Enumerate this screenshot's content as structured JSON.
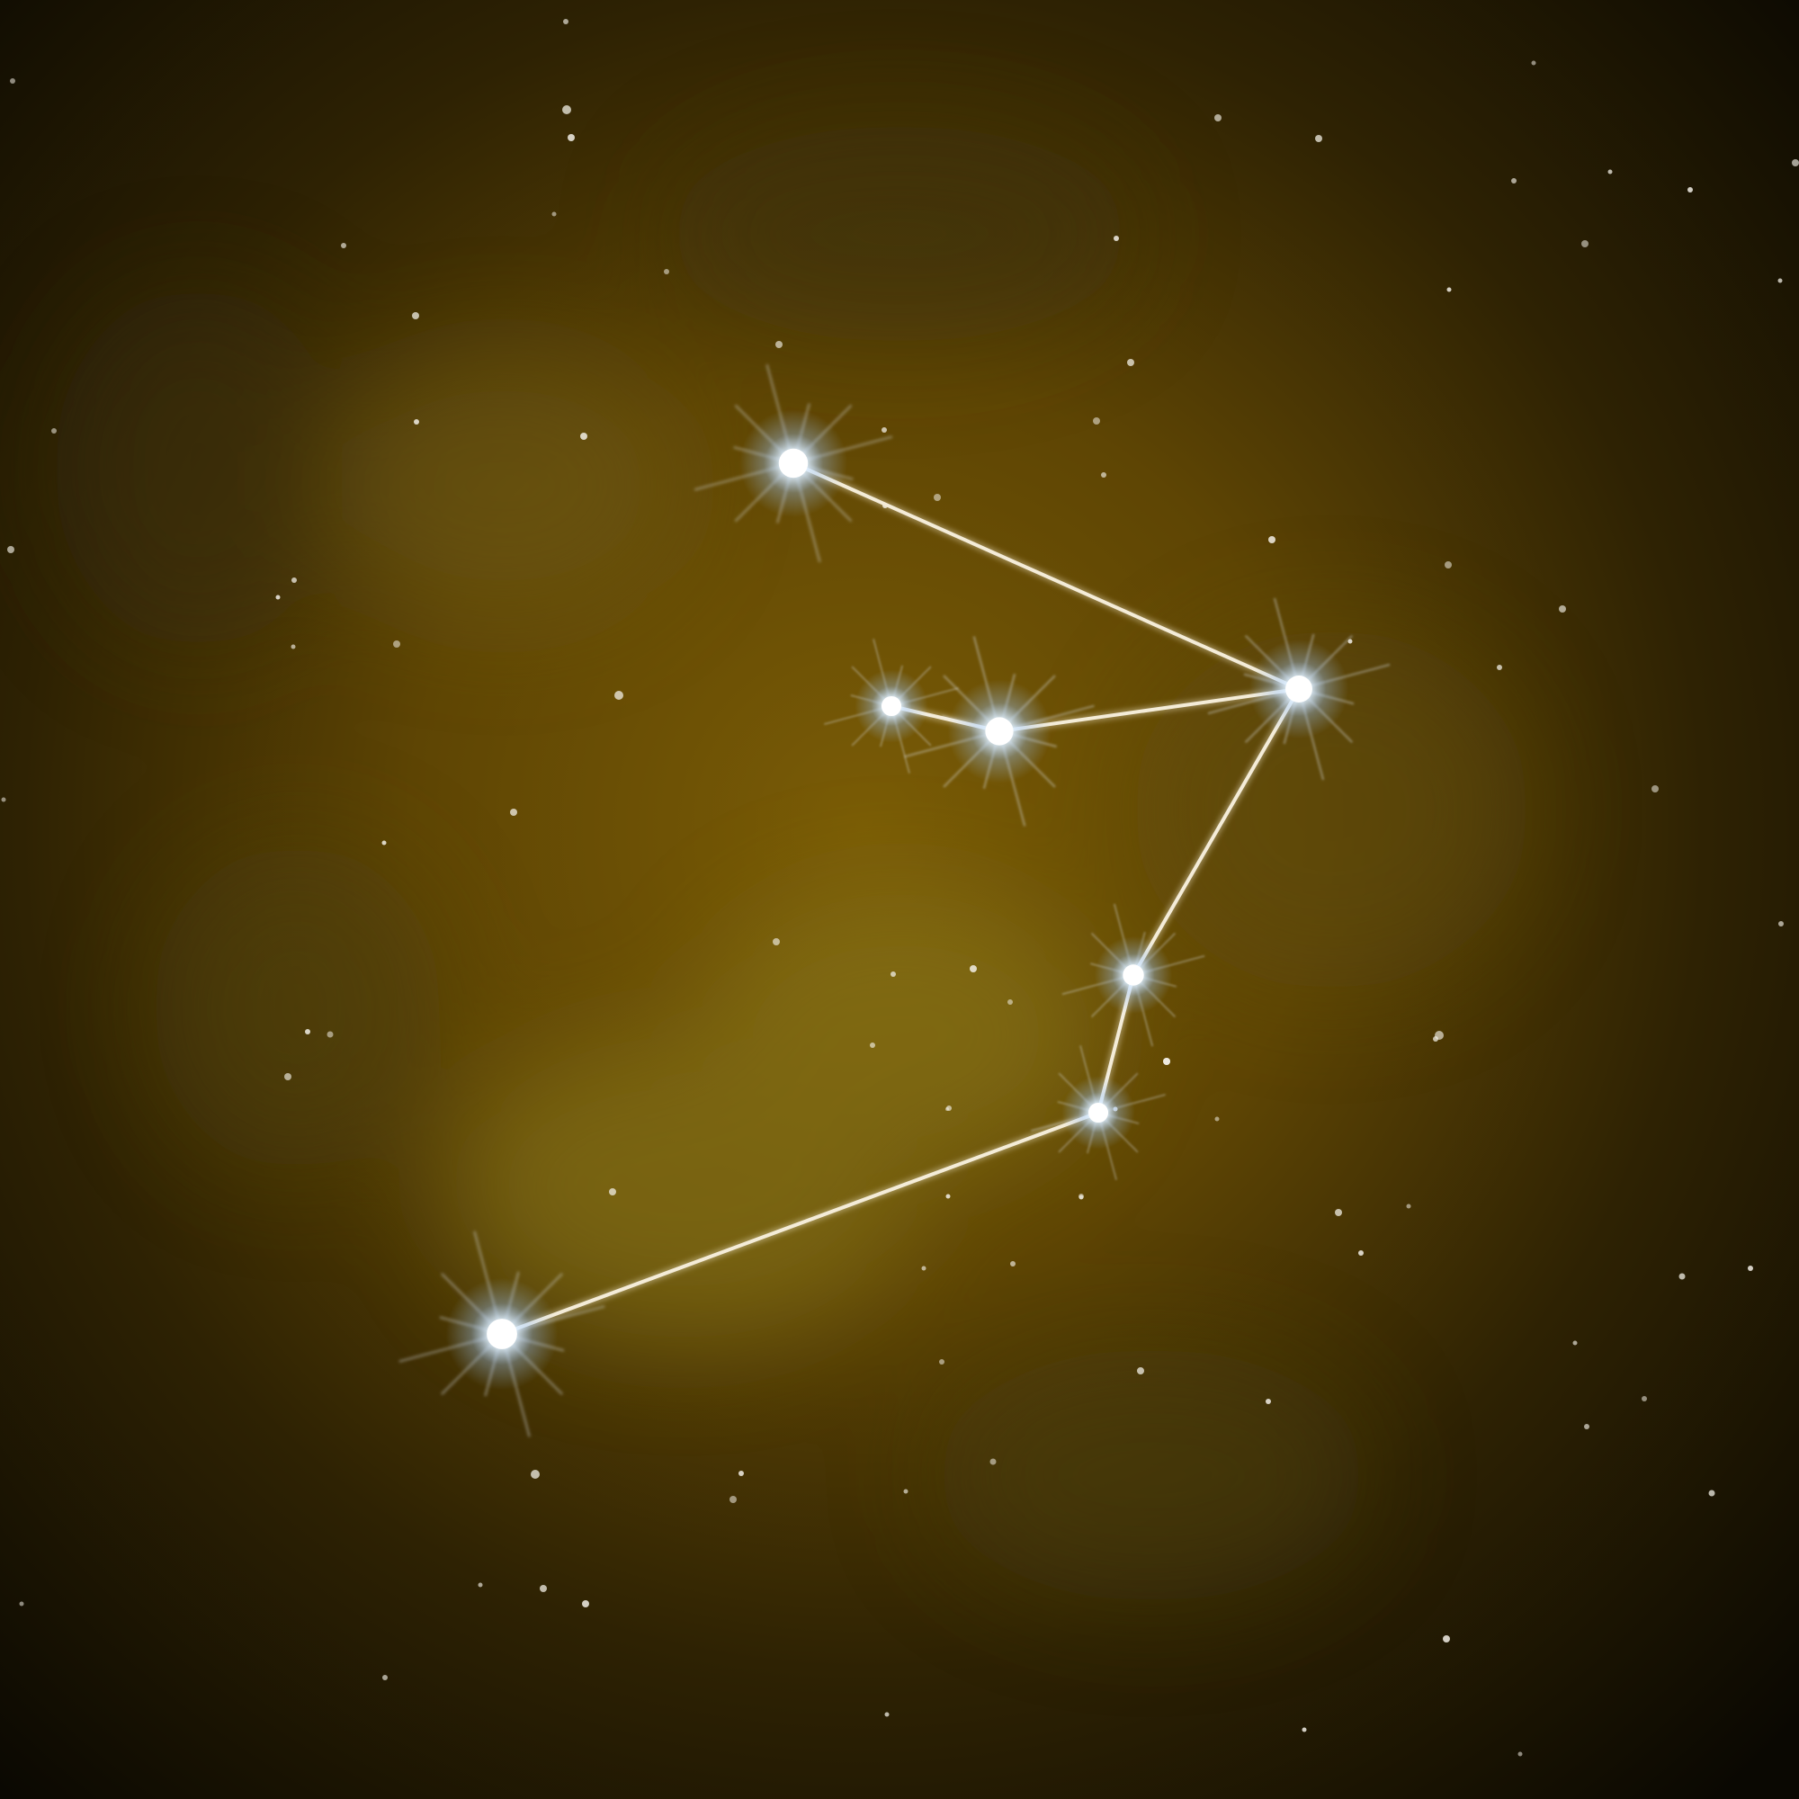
{
  "scene": {
    "palette": {
      "core": "#7a5c06",
      "mid": "#4a3604",
      "edge": "#0a0802",
      "haze": "#8c7a1c",
      "line": "#f4ecd8",
      "star_glow": "#cfe6ff",
      "star_core": "#ffffff"
    }
  }
}
